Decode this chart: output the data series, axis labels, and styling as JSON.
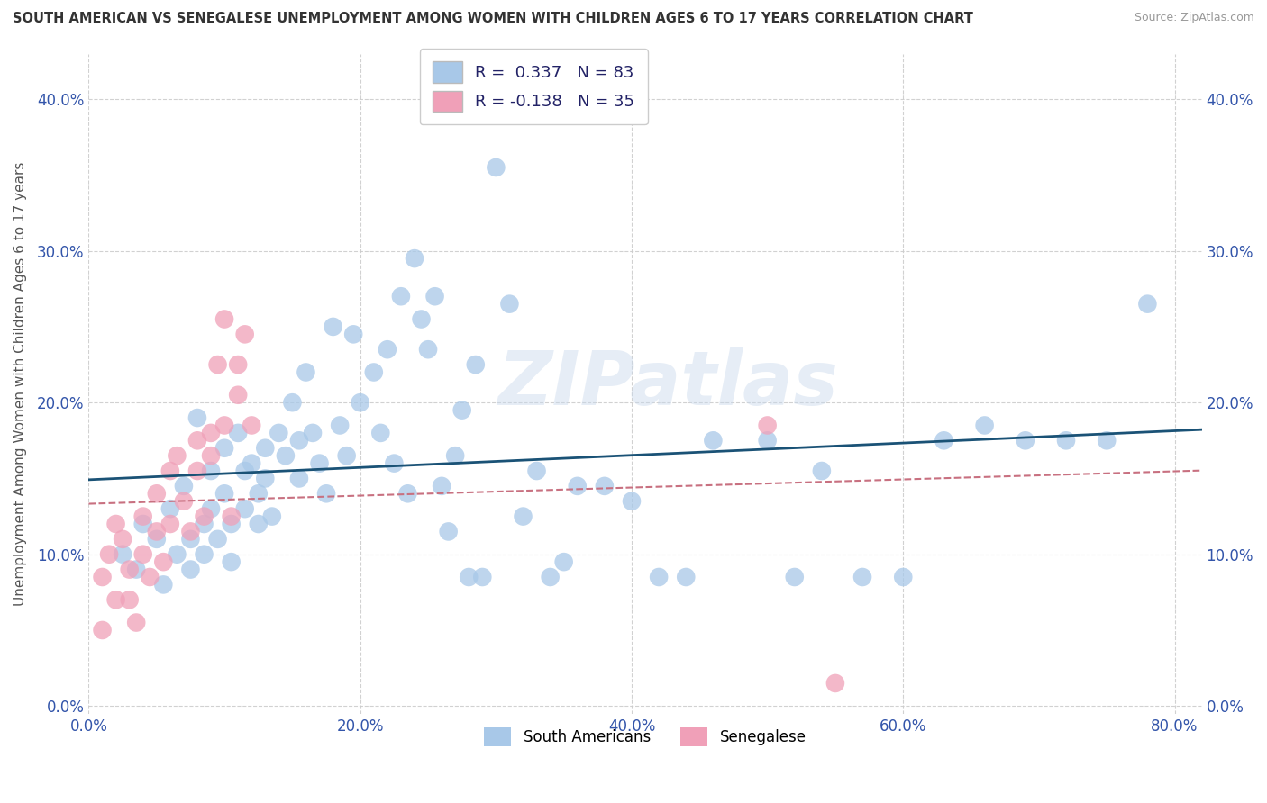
{
  "title": "SOUTH AMERICAN VS SENEGALESE UNEMPLOYMENT AMONG WOMEN WITH CHILDREN AGES 6 TO 17 YEARS CORRELATION CHART",
  "source": "Source: ZipAtlas.com",
  "ylabel": "Unemployment Among Women with Children Ages 6 to 17 years",
  "xlim": [
    0.0,
    0.82
  ],
  "ylim": [
    -0.005,
    0.43
  ],
  "xticks": [
    0.0,
    0.2,
    0.4,
    0.6,
    0.8
  ],
  "xtick_labels": [
    "0.0%",
    "20.0%",
    "40.0%",
    "60.0%",
    "80.0%"
  ],
  "yticks": [
    0.0,
    0.1,
    0.2,
    0.3,
    0.4
  ],
  "ytick_labels": [
    "0.0%",
    "10.0%",
    "20.0%",
    "30.0%",
    "40.0%"
  ],
  "blue_fill": "#A8C8E8",
  "pink_fill": "#F0A0B8",
  "blue_line": "#1A5276",
  "pink_line": "#C87080",
  "R_blue": 0.337,
  "N_blue": 83,
  "R_pink": -0.138,
  "N_pink": 35,
  "watermark": "ZIPatlas",
  "group1_label": "South Americans",
  "group2_label": "Senegalese",
  "blue_x": [
    0.025,
    0.035,
    0.04,
    0.05,
    0.055,
    0.06,
    0.065,
    0.07,
    0.075,
    0.075,
    0.08,
    0.085,
    0.085,
    0.09,
    0.09,
    0.095,
    0.1,
    0.1,
    0.105,
    0.105,
    0.11,
    0.115,
    0.115,
    0.12,
    0.125,
    0.125,
    0.13,
    0.13,
    0.135,
    0.14,
    0.145,
    0.15,
    0.155,
    0.155,
    0.16,
    0.165,
    0.17,
    0.175,
    0.18,
    0.185,
    0.19,
    0.195,
    0.2,
    0.21,
    0.215,
    0.22,
    0.225,
    0.23,
    0.235,
    0.24,
    0.245,
    0.25,
    0.255,
    0.26,
    0.265,
    0.27,
    0.275,
    0.28,
    0.285,
    0.29,
    0.3,
    0.31,
    0.32,
    0.33,
    0.34,
    0.35,
    0.36,
    0.38,
    0.4,
    0.42,
    0.44,
    0.46,
    0.5,
    0.52,
    0.54,
    0.57,
    0.6,
    0.63,
    0.66,
    0.69,
    0.72,
    0.75,
    0.78
  ],
  "blue_y": [
    0.1,
    0.09,
    0.12,
    0.11,
    0.08,
    0.13,
    0.1,
    0.145,
    0.11,
    0.09,
    0.19,
    0.12,
    0.1,
    0.155,
    0.13,
    0.11,
    0.17,
    0.14,
    0.12,
    0.095,
    0.18,
    0.155,
    0.13,
    0.16,
    0.14,
    0.12,
    0.17,
    0.15,
    0.125,
    0.18,
    0.165,
    0.2,
    0.175,
    0.15,
    0.22,
    0.18,
    0.16,
    0.14,
    0.25,
    0.185,
    0.165,
    0.245,
    0.2,
    0.22,
    0.18,
    0.235,
    0.16,
    0.27,
    0.14,
    0.295,
    0.255,
    0.235,
    0.27,
    0.145,
    0.115,
    0.165,
    0.195,
    0.085,
    0.225,
    0.085,
    0.355,
    0.265,
    0.125,
    0.155,
    0.085,
    0.095,
    0.145,
    0.145,
    0.135,
    0.085,
    0.085,
    0.175,
    0.175,
    0.085,
    0.155,
    0.085,
    0.085,
    0.175,
    0.185,
    0.175,
    0.175,
    0.175,
    0.265
  ],
  "pink_x": [
    0.01,
    0.01,
    0.015,
    0.02,
    0.02,
    0.025,
    0.03,
    0.03,
    0.035,
    0.04,
    0.04,
    0.045,
    0.05,
    0.05,
    0.055,
    0.06,
    0.06,
    0.065,
    0.07,
    0.075,
    0.08,
    0.08,
    0.085,
    0.09,
    0.09,
    0.095,
    0.1,
    0.1,
    0.105,
    0.11,
    0.11,
    0.115,
    0.12,
    0.5,
    0.55
  ],
  "pink_y": [
    0.05,
    0.085,
    0.1,
    0.07,
    0.12,
    0.11,
    0.09,
    0.07,
    0.055,
    0.125,
    0.1,
    0.085,
    0.14,
    0.115,
    0.095,
    0.155,
    0.12,
    0.165,
    0.135,
    0.115,
    0.175,
    0.155,
    0.125,
    0.18,
    0.165,
    0.225,
    0.255,
    0.185,
    0.125,
    0.225,
    0.205,
    0.245,
    0.185,
    0.185,
    0.015
  ]
}
